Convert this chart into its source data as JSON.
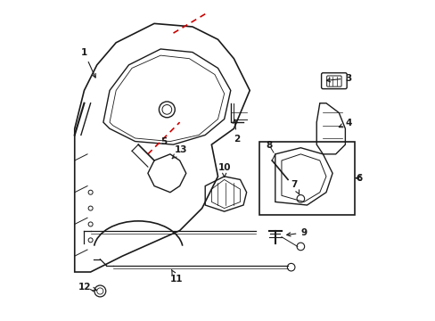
{
  "background_color": "#ffffff",
  "line_color": "#1a1a1a",
  "red_dashed_color": "#cc0000",
  "label_color": "#1a1a1a",
  "figsize": [
    4.89,
    3.6
  ],
  "dpi": 100
}
